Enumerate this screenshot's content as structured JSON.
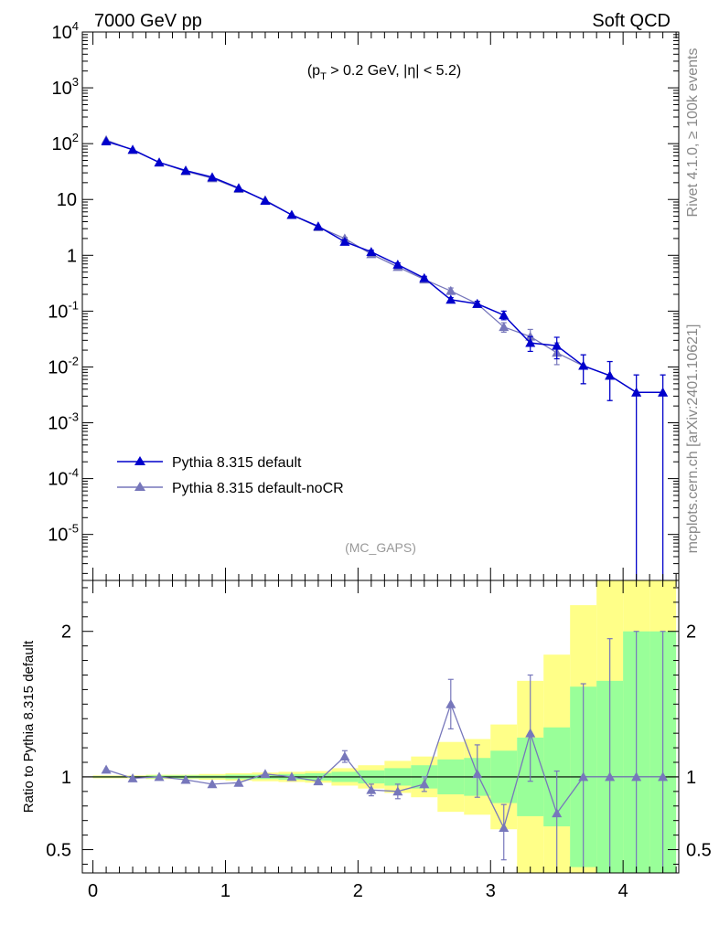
{
  "header": {
    "left": "7000 GeV pp",
    "right": "Soft QCD"
  },
  "side_labels": {
    "rivet": "Rivet 4.1.0, ≥ 100k events",
    "mcplots": "mcplots.cern.ch [arXiv:2401.10621]"
  },
  "annotations": {
    "cut_text": "(p",
    "cut_sub": "T",
    "cut_rest": " > 0.2 GeV, |η| < 5.2)",
    "analysis": "(MC_GAPS)"
  },
  "colors": {
    "default": "#0000cc",
    "nocr": "#7777bb",
    "band_yellow": "#ffff88",
    "band_green": "#99ff99"
  },
  "legend": [
    "Pythia 8.315 default",
    "Pythia 8.315 default-noCR"
  ],
  "chart_data": [
    {
      "type": "line",
      "panel": "main",
      "yscale": "log",
      "xlim": [
        -0.08,
        4.42
      ],
      "ylim": [
        1.5e-06,
        10000
      ],
      "ytick_labels": [
        "10^4",
        "10^3",
        "10^2",
        "10",
        "1",
        "10^-1",
        "10^-2",
        "10^-3",
        "10^-4",
        "10^-5"
      ],
      "x": [
        0.1,
        0.3,
        0.5,
        0.7,
        0.9,
        1.1,
        1.3,
        1.5,
        1.7,
        1.9,
        2.1,
        2.3,
        2.5,
        2.7,
        2.9,
        3.1,
        3.3,
        3.5,
        3.7,
        3.9,
        4.1,
        4.3
      ],
      "series": [
        {
          "name": "Pythia 8.315 default",
          "values": [
            110,
            78,
            46,
            33,
            25,
            16,
            9.5,
            5.3,
            3.3,
            1.75,
            1.15,
            0.68,
            0.39,
            0.16,
            0.135,
            0.085,
            0.027,
            0.024,
            0.0105,
            0.007,
            0.0035,
            0.0035
          ],
          "err_lo": [
            0,
            0,
            0,
            0,
            0,
            0,
            0,
            0,
            0,
            0.15,
            0.08,
            0.05,
            0.03,
            0.015,
            0.015,
            0.015,
            0.008,
            0.01,
            0.0055,
            0.0045,
            0.0035,
            0.0035
          ],
          "err_hi": [
            0,
            0,
            0,
            0,
            0,
            0,
            0,
            0,
            0,
            0.15,
            0.08,
            0.05,
            0.03,
            0.015,
            0.015,
            0.015,
            0.008,
            0.01,
            0.006,
            0.0055,
            0.0037,
            0.0037
          ]
        },
        {
          "name": "Pythia 8.315 default-noCR",
          "values": [
            116,
            77,
            46,
            32,
            24,
            15.5,
            9.7,
            5.3,
            3.2,
            2.0,
            1.05,
            0.62,
            0.37,
            0.23,
            0.135,
            0.052,
            0.035,
            0.018,
            0.0105,
            0.007,
            0.0035,
            0.0035
          ],
          "err_lo": [
            0,
            0,
            0,
            0,
            0,
            0,
            0,
            0,
            0,
            0.1,
            0.08,
            0.05,
            0.03,
            0.03,
            0.015,
            0.01,
            0.01,
            0.007,
            0.0055,
            0.0045,
            0.0035,
            0.0035
          ],
          "err_hi": [
            0,
            0,
            0,
            0,
            0,
            0,
            0,
            0,
            0,
            0.1,
            0.08,
            0.05,
            0.03,
            0.03,
            0.015,
            0.01,
            0.012,
            0.009,
            0.006,
            0.0055,
            0.0037,
            0.0037
          ]
        }
      ]
    },
    {
      "type": "line",
      "panel": "ratio",
      "ylabel": "Ratio to Pythia 8.315 default",
      "xlim": [
        -0.08,
        4.42
      ],
      "ylim": [
        0.34,
        2.35
      ],
      "xtick_labels": [
        "0",
        "1",
        "2",
        "3",
        "4"
      ],
      "ytick_labels": [
        "2",
        "1",
        "0.5"
      ],
      "reference_line": 1,
      "x": [
        0.1,
        0.3,
        0.5,
        0.7,
        0.9,
        1.1,
        1.3,
        1.5,
        1.7,
        1.9,
        2.1,
        2.3,
        2.5,
        2.7,
        2.9,
        3.1,
        3.3,
        3.5,
        3.7,
        3.9,
        4.1,
        4.3
      ],
      "bands": {
        "green_lo": [
          0.995,
          0.995,
          0.99,
          0.99,
          0.99,
          0.985,
          0.985,
          0.98,
          0.975,
          0.965,
          0.955,
          0.94,
          0.92,
          0.88,
          0.87,
          0.82,
          0.73,
          0.66,
          0.38,
          0.34,
          0.34,
          0.34
        ],
        "green_hi": [
          1.005,
          1.005,
          1.01,
          1.01,
          1.01,
          1.015,
          1.015,
          1.02,
          1.025,
          1.035,
          1.045,
          1.06,
          1.08,
          1.12,
          1.13,
          1.18,
          1.27,
          1.34,
          1.62,
          1.66,
          2.0,
          2.0
        ],
        "yellow_lo": [
          0.99,
          0.99,
          0.985,
          0.985,
          0.98,
          0.975,
          0.97,
          0.965,
          0.96,
          0.94,
          0.92,
          0.89,
          0.86,
          0.76,
          0.74,
          0.64,
          0.34,
          0.34,
          0.34,
          0.34,
          0.34,
          0.34
        ],
        "yellow_hi": [
          1.01,
          1.01,
          1.015,
          1.015,
          1.02,
          1.025,
          1.03,
          1.035,
          1.04,
          1.06,
          1.08,
          1.11,
          1.14,
          1.24,
          1.26,
          1.36,
          1.66,
          1.84,
          2.18,
          2.35,
          2.35,
          2.35
        ]
      },
      "series": [
        {
          "name": "Pythia 8.315 default-noCR",
          "values": [
            1.05,
            0.99,
            1.0,
            0.98,
            0.95,
            0.96,
            1.02,
            1.0,
            0.97,
            1.14,
            0.91,
            0.9,
            0.95,
            1.5,
            1.02,
            0.65,
            1.3,
            0.75,
            1.0,
            1.0,
            1.0,
            1.0
          ],
          "err_lo": [
            0,
            0,
            0,
            0,
            0,
            0,
            0,
            0,
            0,
            0.04,
            0.04,
            0.05,
            0.05,
            0.17,
            0.16,
            0.22,
            0.33,
            0.45,
            0.66,
            0.66,
            0.66,
            0.66
          ],
          "err_hi": [
            0,
            0,
            0,
            0,
            0,
            0,
            0,
            0,
            0,
            0.04,
            0.04,
            0.05,
            0.05,
            0.17,
            0.2,
            0.16,
            0.4,
            0.29,
            0.64,
            0.95,
            1.0,
            1.0
          ]
        }
      ]
    }
  ]
}
